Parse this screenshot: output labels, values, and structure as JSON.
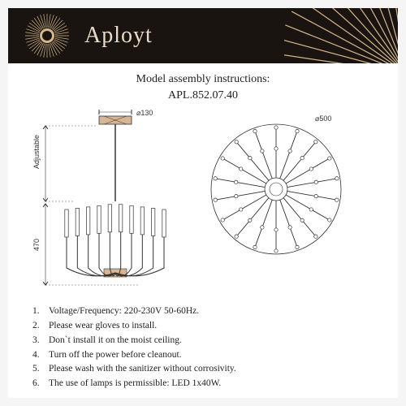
{
  "header": {
    "brand": "Aployt",
    "logo_color": "#d4b88a",
    "bg_color": "#1a1410"
  },
  "title": {
    "line1": "Model assembly instructions:",
    "line2": "APL.852.07.40",
    "fontsize": 14,
    "color": "#222222"
  },
  "diagram": {
    "side_view": {
      "canopy_width_label": "⌀130",
      "adjustable_label": "Adjustable",
      "height_label": "470",
      "stroke": "#333333",
      "fill_accent": "#d8b693",
      "arm_count": 10
    },
    "top_view": {
      "diameter_label": "⌀500",
      "arm_count": 18,
      "stroke": "#333333"
    }
  },
  "instructions": {
    "items": [
      "Voltage/Frequency: 220-230V 50-60Hz.",
      "Please wear gloves to install.",
      "Don`t install it on the moist ceiling.",
      "Turn off the power before cleanout.",
      "Please wash with the sanitizer without corrosivity.",
      "The use of lamps is permissible: LED 1x40W."
    ],
    "fontsize": 11.5,
    "color": "#222222"
  },
  "page_bg": "#ffffff"
}
